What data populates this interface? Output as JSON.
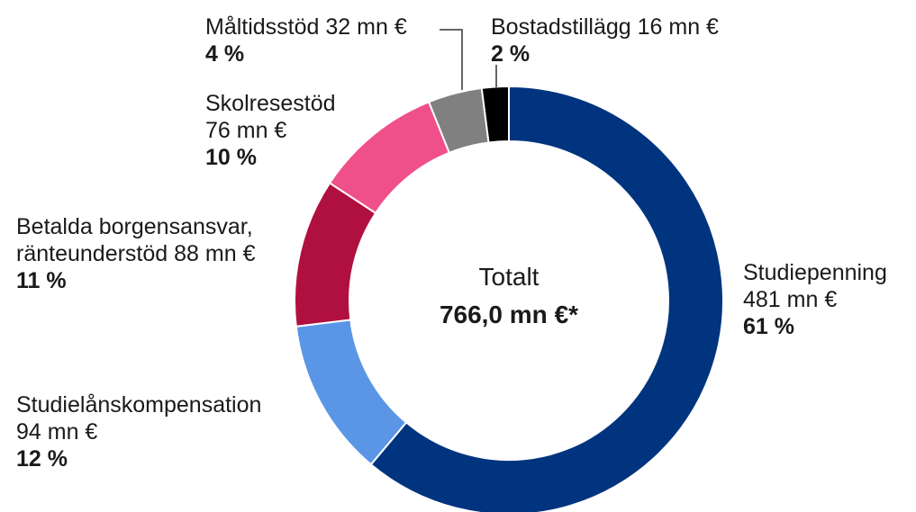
{
  "chart_data": {
    "type": "donut",
    "categories": [
      "Studiepenning",
      "Studielånskompensation",
      "Betalda borgensansvar, ränteunderstöd",
      "Skolresestöd",
      "Måltidsstöd",
      "Bostadstillägg"
    ],
    "values": [
      481,
      94,
      88,
      76,
      32,
      16
    ],
    "value_labels": [
      "481 mn €",
      "94 mn €",
      "88 mn €",
      "76 mn €",
      "32 mn €",
      "16 mn €"
    ],
    "percentages": [
      61,
      12,
      11,
      10,
      4,
      2
    ],
    "percentage_labels": [
      "61 %",
      "12 %",
      "11 %",
      "10 %",
      "4 %",
      "2 %"
    ],
    "colors": [
      "#00347f",
      "#5b96e6",
      "#b0103f",
      "#f0508a",
      "#808080",
      "#000000"
    ],
    "center_title": "Totalt",
    "center_label": "766,0 mn €*"
  }
}
